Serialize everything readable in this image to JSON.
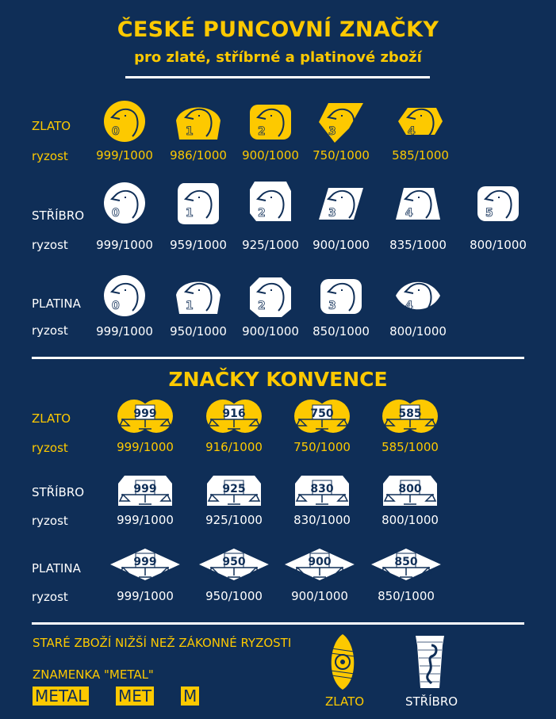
{
  "header": {
    "title": "ČESKÉ PUNCOVNÍ ZNAČKY",
    "subtitle": "pro zlaté, stříbrné a platinové zboží"
  },
  "colors": {
    "background": "#0f2e57",
    "accent": "#fdc900",
    "text_light": "#ffffff"
  },
  "hallmarks": [
    {
      "label": "ZLATO",
      "ryzost": "ryzost",
      "color": "gold",
      "marks": [
        {
          "number": "0",
          "fineness": "999/1000",
          "motif": "eagle-head-icon",
          "shape": "circle"
        },
        {
          "number": "1",
          "fineness": "986/1000",
          "motif": "eagle-head-icon",
          "shape": "dome"
        },
        {
          "number": "2",
          "fineness": "900/1000",
          "motif": "eagle-head-icon",
          "shape": "rounded-rect"
        },
        {
          "number": "3",
          "fineness": "750/1000",
          "motif": "rooster-head-icon",
          "shape": "kite"
        },
        {
          "number": "4",
          "fineness": "585/1000",
          "motif": "bird-head-icon",
          "shape": "hexagon"
        }
      ]
    },
    {
      "label": "STŘÍBRO",
      "ryzost": "ryzost",
      "color": "silver",
      "marks": [
        {
          "number": "0",
          "fineness": "999/1000",
          "motif": "goat-head-icon",
          "shape": "circle"
        },
        {
          "number": "1",
          "fineness": "959/1000",
          "motif": "goat-head-icon",
          "shape": "tall-rounded"
        },
        {
          "number": "2",
          "fineness": "925/1000",
          "motif": "goat-head-icon",
          "shape": "tall-cut"
        },
        {
          "number": "3",
          "fineness": "900/1000",
          "motif": "hare-head-icon",
          "shape": "parallelogram"
        },
        {
          "number": "4",
          "fineness": "835/1000",
          "motif": "hare-head-icon",
          "shape": "trapezoid"
        },
        {
          "number": "5",
          "fineness": "800/1000",
          "motif": "hare-head-icon",
          "shape": "rounded-rect"
        }
      ]
    },
    {
      "label": "PLATINA",
      "ryzost": "ryzost",
      "color": "silver",
      "marks": [
        {
          "number": "0",
          "fineness": "999/1000",
          "motif": "crown-icon",
          "shape": "circle"
        },
        {
          "number": "1",
          "fineness": "950/1000",
          "motif": "crown-icon",
          "shape": "dome"
        },
        {
          "number": "2",
          "fineness": "900/1000",
          "motif": "crown-icon",
          "shape": "octagon"
        },
        {
          "number": "3",
          "fineness": "850/1000",
          "motif": "crown-icon",
          "shape": "rounded-rect"
        },
        {
          "number": "4",
          "fineness": "800/1000",
          "motif": "crown-icon",
          "shape": "lens"
        }
      ]
    }
  ],
  "convention": {
    "title": "ZNAČKY KONVENCE",
    "rows": [
      {
        "label": "ZLATO",
        "ryzost": "ryzost",
        "color": "gold",
        "shape": "double-circle",
        "marks": [
          {
            "number": "999",
            "fineness": "999/1000"
          },
          {
            "number": "916",
            "fineness": "916/1000"
          },
          {
            "number": "750",
            "fineness": "750/1000"
          },
          {
            "number": "585",
            "fineness": "585/1000"
          }
        ]
      },
      {
        "label": "STŘÍBRO",
        "ryzost": "ryzost",
        "color": "silver",
        "shape": "octagon",
        "marks": [
          {
            "number": "999",
            "fineness": "999/1000"
          },
          {
            "number": "925",
            "fineness": "925/1000"
          },
          {
            "number": "830",
            "fineness": "830/1000"
          },
          {
            "number": "800",
            "fineness": "800/1000"
          }
        ]
      },
      {
        "label": "PLATINA",
        "ryzost": "ryzost",
        "color": "silver",
        "shape": "diamond",
        "marks": [
          {
            "number": "999",
            "fineness": "999/1000"
          },
          {
            "number": "950",
            "fineness": "950/1000"
          },
          {
            "number": "900",
            "fineness": "900/1000"
          },
          {
            "number": "850",
            "fineness": "850/1000"
          }
        ]
      }
    ]
  },
  "footer": {
    "old_goods": "STARÉ ZBOŽÍ NIŽŠÍ NEŽ ZÁKONNÉ RYZOSTI",
    "metal_title": "ZNAMENKA \"METAL\"",
    "metal_marks": [
      "METAL",
      "MET",
      "M"
    ],
    "emblems": [
      {
        "label": "ZLATO",
        "motif": "shield-emblem-icon"
      },
      {
        "label": "STŘÍBRO",
        "motif": "seahorse-emblem-icon"
      }
    ]
  }
}
